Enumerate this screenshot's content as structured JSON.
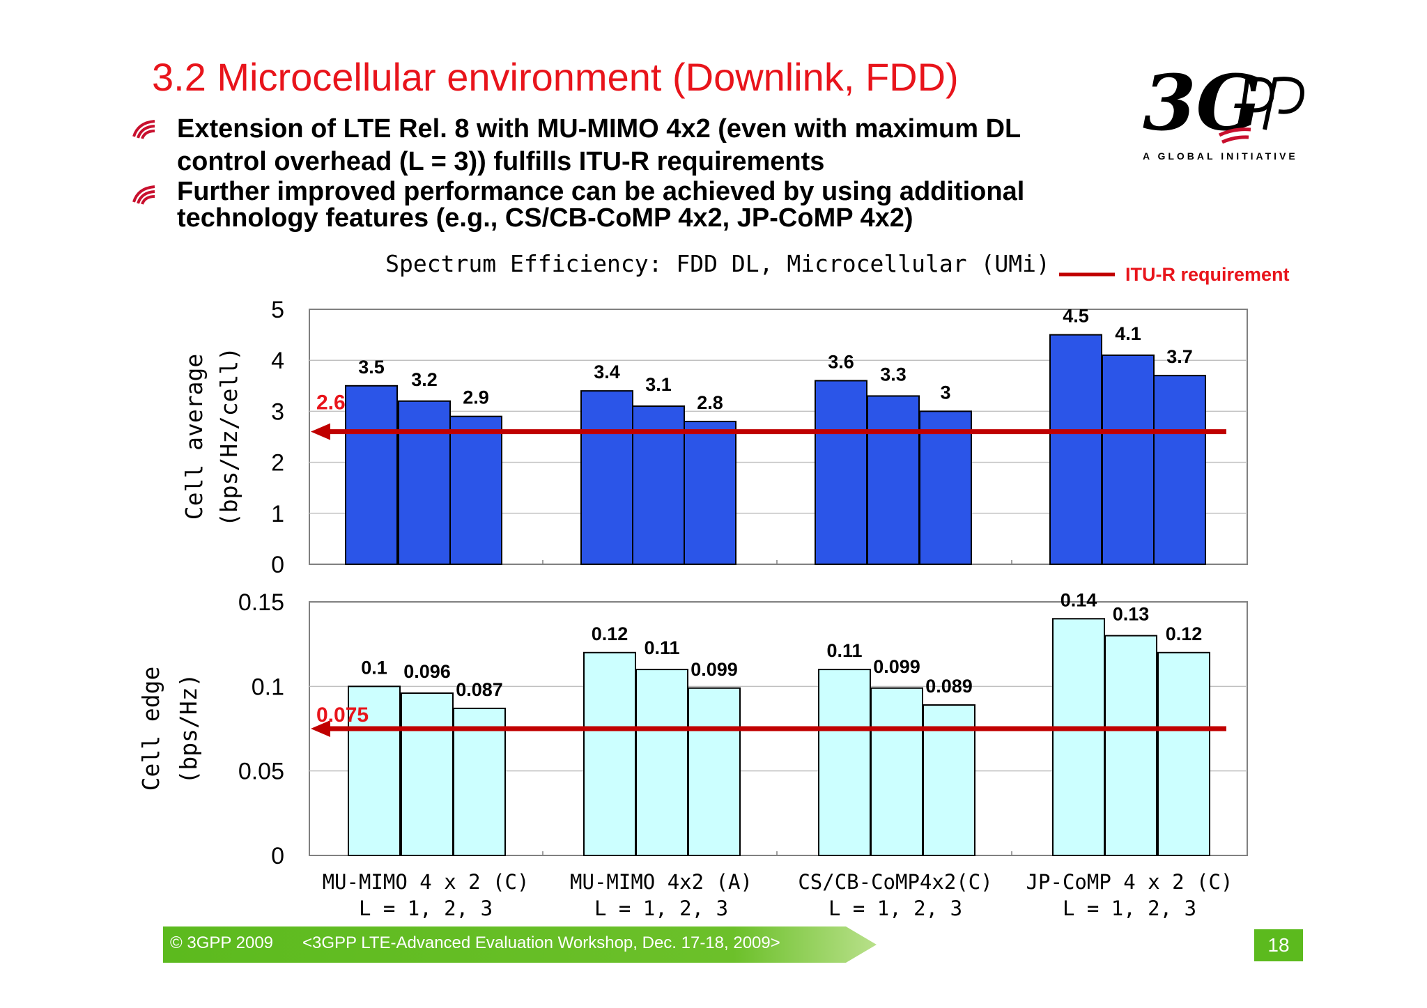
{
  "slide": {
    "title": "3.2 Microcellular environment (Downlink, FDD)",
    "bullets": [
      "Extension of LTE Rel. 8 with MU-MIMO 4x2 (even with maximum DL control overhead  (L = 3)) fulfills ITU-R requirements",
      "Further improved performance can be achieved by using additional technology features  (e.g., CS/CB-CoMP 4x2, JP-CoMP 4x2)"
    ],
    "logo_tagline": "A GLOBAL INITIATIVE",
    "logo_icon": "3gpp-logo",
    "bullet_icon": "bullet-swoosh-icon"
  },
  "chart_data": {
    "type": "bar",
    "title": "Spectrum Efficiency: FDD DL, Microcellular (UMi)",
    "legend": {
      "label": "ITU-R requirement",
      "placement": "top-right",
      "color": "#c00000"
    },
    "categories": [
      {
        "line1": "MU-MIMO 4 x 2 (C)",
        "line2": "L = 1, 2, 3"
      },
      {
        "line1": "MU-MIMO 4x2 (A)",
        "line2": "L = 1, 2, 3"
      },
      {
        "line1": "CS/CB-CoMP4x2(C)",
        "line2": "L = 1, 2, 3"
      },
      {
        "line1": "JP-CoMP 4 x 2 (C)",
        "line2": "L = 1, 2, 3"
      }
    ],
    "panels": [
      {
        "id": "cell-average",
        "ylabel_line1": "Cell average",
        "ylabel_line2": "(bps/Hz/cell)",
        "ylim": [
          0,
          5
        ],
        "yticks": [
          0,
          1,
          2,
          3,
          4,
          5
        ],
        "ytick_labels": [
          "0",
          "1",
          "2",
          "3",
          "4",
          "5"
        ],
        "bar_color": "#2b55e8",
        "requirement": 2.6,
        "requirement_label": "2.6",
        "groups": [
          [
            3.5,
            3.2,
            2.9
          ],
          [
            3.4,
            3.1,
            2.8
          ],
          [
            3.6,
            3.3,
            3.0
          ],
          [
            4.5,
            4.1,
            3.7
          ]
        ],
        "value_labels": [
          [
            "3.5",
            "3.2",
            "2.9"
          ],
          [
            "3.4",
            "3.1",
            "2.8"
          ],
          [
            "3.6",
            "3.3",
            "3"
          ],
          [
            "4.5",
            "4.1",
            "3.7"
          ]
        ]
      },
      {
        "id": "cell-edge",
        "ylabel_line1": "Cell edge",
        "ylabel_line2": "(bps/Hz)",
        "ylim": [
          0,
          0.15
        ],
        "yticks": [
          0,
          0.05,
          0.1,
          0.15
        ],
        "ytick_labels": [
          "0",
          "0.05",
          "0.1",
          "0.15"
        ],
        "bar_color": "#ccffff",
        "requirement": 0.075,
        "requirement_label": "0.075",
        "groups": [
          [
            0.1,
            0.096,
            0.087
          ],
          [
            0.12,
            0.11,
            0.099
          ],
          [
            0.11,
            0.099,
            0.089
          ],
          [
            0.14,
            0.13,
            0.12
          ]
        ],
        "value_labels": [
          [
            "0.1",
            "0.096",
            "0.087"
          ],
          [
            "0.12",
            "0.11",
            "0.099"
          ],
          [
            "0.11",
            "0.099",
            "0.089"
          ],
          [
            "0.14",
            "0.13",
            "0.12"
          ]
        ]
      }
    ]
  },
  "footer": {
    "copyright": "© 3GPP 2009",
    "event": "<3GPP LTE-Advanced Evaluation Workshop, Dec. 17-18, 2009>",
    "page_number": "18"
  }
}
